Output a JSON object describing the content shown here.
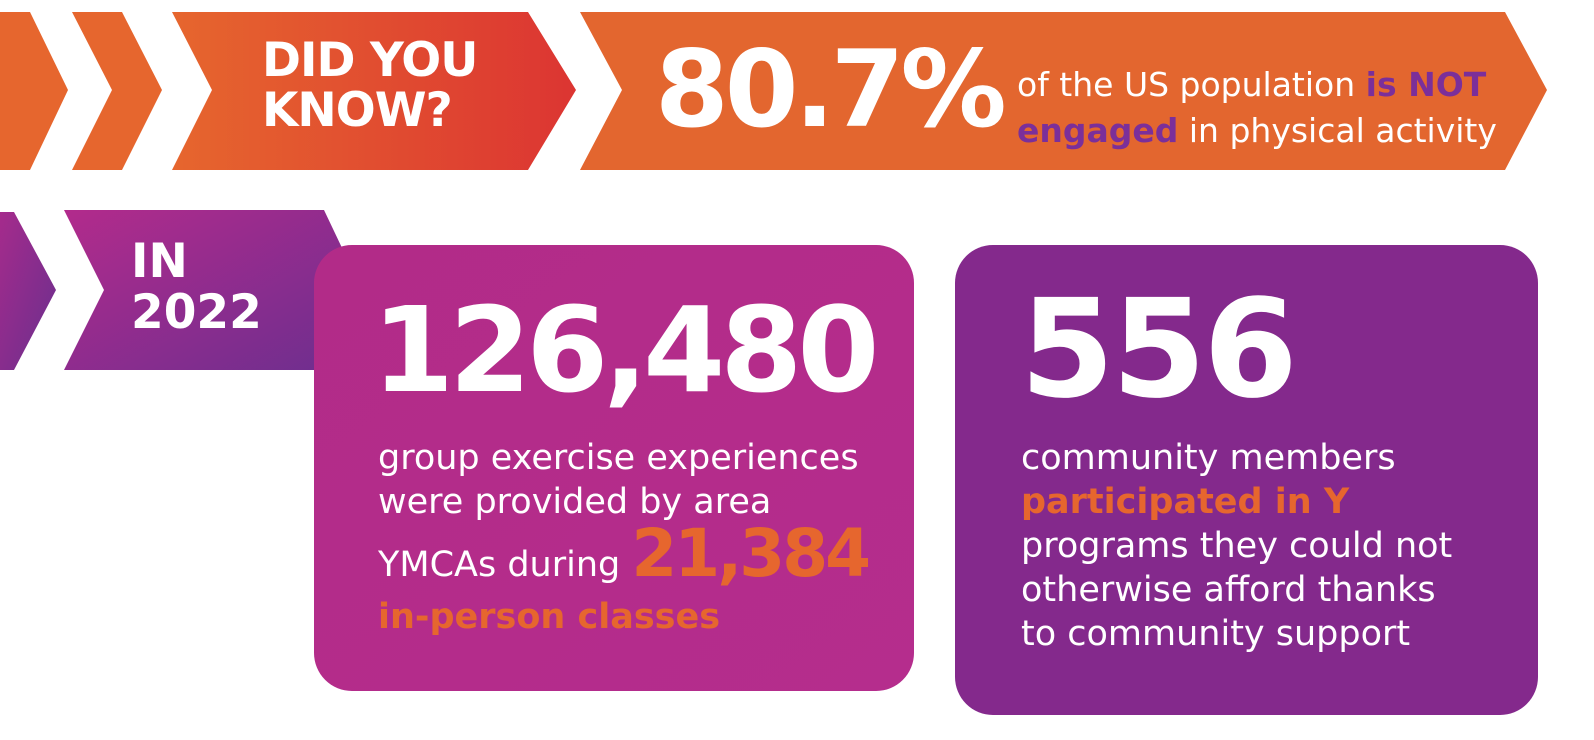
{
  "colors": {
    "orange": "#e6662e",
    "red": "#dc3532",
    "magenta": "#b42a8a",
    "purple": "#84298c",
    "highlight_purple": "#7b2f9a",
    "highlight_orange": "#e6662e"
  },
  "banner_top": {
    "label_line1": "DID YOU",
    "label_line2": "KNOW?",
    "stat": "80.7%",
    "text_part1": "of the US population",
    "text_highlight1": "is NOT",
    "text_highlight2": "engaged",
    "text_part2": "in physical activity"
  },
  "banner_year": {
    "line1": "IN",
    "line2": "2022"
  },
  "card_exercise": {
    "number": "126,480",
    "line1": "group exercise experiences",
    "line2": "were provided by area",
    "line3": "YMCAs during",
    "highlight_number": "21,384",
    "highlight_text": "in-person classes"
  },
  "card_community": {
    "number": "556",
    "line1": "community members",
    "highlight": "participated in Y",
    "line3": "programs they could not",
    "line4": "otherwise afford thanks",
    "line5": "to community support"
  }
}
